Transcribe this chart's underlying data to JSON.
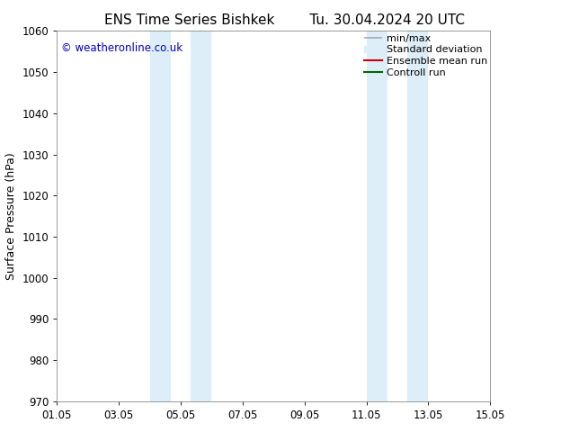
{
  "title_left": "ENS Time Series Bishkek",
  "title_right": "Tu. 30.04.2024 20 UTC",
  "ylabel": "Surface Pressure (hPa)",
  "ylim": [
    970,
    1060
  ],
  "yticks": [
    970,
    980,
    990,
    1000,
    1010,
    1020,
    1030,
    1040,
    1050,
    1060
  ],
  "xlim_start": 0,
  "xlim_end": 14,
  "xtick_labels": [
    "01.05",
    "03.05",
    "05.05",
    "07.05",
    "09.05",
    "11.05",
    "13.05",
    "15.05"
  ],
  "xtick_positions": [
    0,
    2,
    4,
    6,
    8,
    10,
    12,
    14
  ],
  "shaded_bands": [
    {
      "x_start": 3.0,
      "x_end": 3.67
    },
    {
      "x_start": 4.33,
      "x_end": 5.0
    },
    {
      "x_start": 10.0,
      "x_end": 10.67
    },
    {
      "x_start": 11.33,
      "x_end": 12.0
    }
  ],
  "shaded_color": "#ddeef8",
  "watermark_text": "© weatheronline.co.uk",
  "watermark_color": "#0000cc",
  "legend_entries": [
    {
      "label": "min/max",
      "color": "#aaaaaa",
      "type": "minmax"
    },
    {
      "label": "Standard deviation",
      "color": "#ddeef8",
      "type": "patch"
    },
    {
      "label": "Ensemble mean run",
      "color": "#cc0000",
      "type": "line"
    },
    {
      "label": "Controll run",
      "color": "#006600",
      "type": "line"
    }
  ],
  "bg_color": "#ffffff",
  "spine_color": "#888888",
  "title_fontsize": 11,
  "axis_label_fontsize": 9,
  "tick_fontsize": 8.5,
  "legend_fontsize": 8
}
